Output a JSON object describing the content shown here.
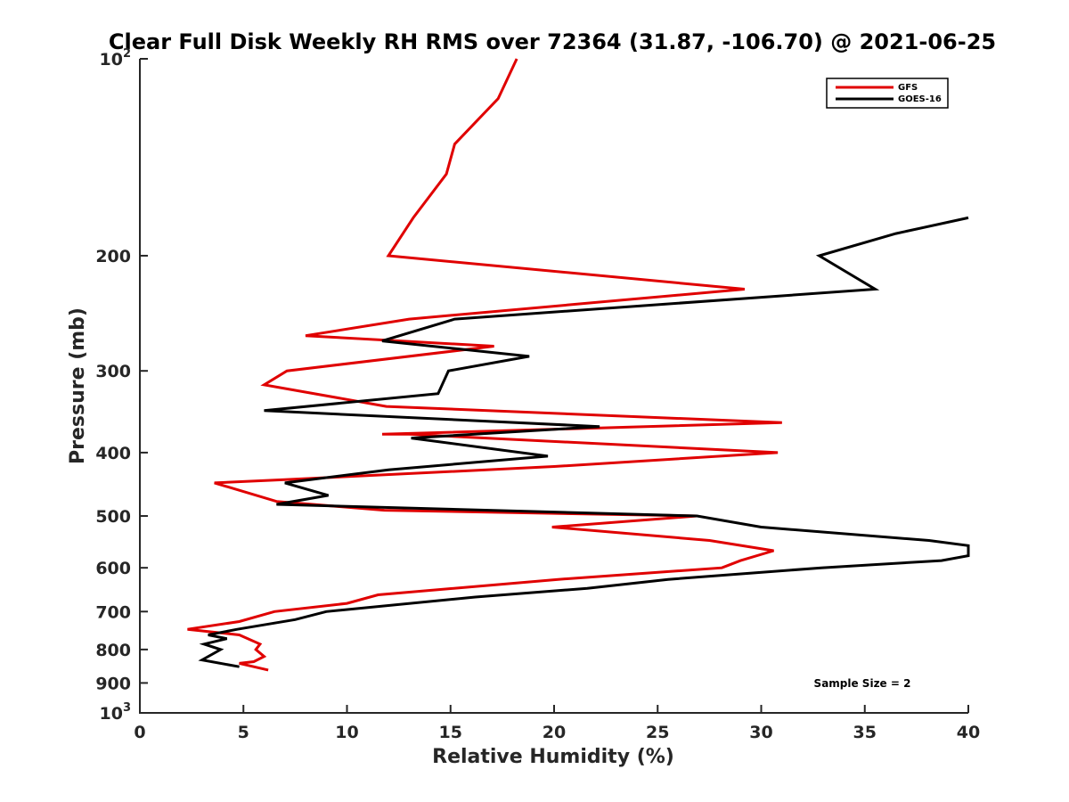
{
  "chart_data": {
    "type": "line",
    "title": "Clear Full Disk Weekly RH RMS over 72364 (31.87, -106.70) @ 2021-06-25",
    "xlabel": "Relative Humidity (%)",
    "ylabel": "Pressure (mb)",
    "xlim": [
      0,
      40
    ],
    "ylim": [
      100,
      1000
    ],
    "y_scale": "log",
    "y_reversed": true,
    "grid": false,
    "legend_location": "top-right",
    "x_ticks": [
      0,
      5,
      10,
      15,
      20,
      25,
      30,
      35,
      40
    ],
    "x_tick_labels": [
      "0",
      "5",
      "10",
      "15",
      "20",
      "25",
      "30",
      "35",
      "40"
    ],
    "y_ticks": [
      100,
      200,
      300,
      400,
      500,
      600,
      700,
      800,
      900,
      1000
    ],
    "y_tick_labels": [
      {
        "base": "10",
        "sup": "2"
      },
      {
        "base": "200",
        "sup": ""
      },
      {
        "base": "300",
        "sup": ""
      },
      {
        "base": "400",
        "sup": ""
      },
      {
        "base": "500",
        "sup": ""
      },
      {
        "base": "600",
        "sup": ""
      },
      {
        "base": "700",
        "sup": ""
      },
      {
        "base": "800",
        "sup": ""
      },
      {
        "base": "900",
        "sup": ""
      },
      {
        "base": "10",
        "sup": "3"
      }
    ],
    "annotation": "Sample Size = 2",
    "series": [
      {
        "name": "GFS",
        "color": "#e00000",
        "points": [
          [
            18.2,
            100
          ],
          [
            17.3,
            115
          ],
          [
            15.2,
            135
          ],
          [
            14.8,
            150
          ],
          [
            13.2,
            175
          ],
          [
            12.0,
            200
          ],
          [
            29.2,
            225
          ],
          [
            13.0,
            250
          ],
          [
            8.0,
            265
          ],
          [
            17.1,
            275
          ],
          [
            7.1,
            300
          ],
          [
            6.0,
            315
          ],
          [
            11.9,
            340
          ],
          [
            31.0,
            360
          ],
          [
            11.7,
            375
          ],
          [
            13.0,
            375
          ],
          [
            30.8,
            400
          ],
          [
            20.0,
            420
          ],
          [
            7.0,
            440
          ],
          [
            3.6,
            445
          ],
          [
            6.6,
            475
          ],
          [
            11.8,
            490
          ],
          [
            26.9,
            500
          ],
          [
            19.9,
            520
          ],
          [
            27.5,
            545
          ],
          [
            30.6,
            565
          ],
          [
            29.0,
            585
          ],
          [
            28.1,
            600
          ],
          [
            20.2,
            625
          ],
          [
            11.5,
            660
          ],
          [
            10.0,
            680
          ],
          [
            6.5,
            700
          ],
          [
            4.8,
            725
          ],
          [
            2.3,
            745
          ],
          [
            4.8,
            760
          ],
          [
            5.8,
            785
          ],
          [
            5.6,
            800
          ],
          [
            6.0,
            820
          ],
          [
            5.5,
            835
          ],
          [
            4.8,
            840
          ],
          [
            6.2,
            860
          ]
        ]
      },
      {
        "name": "GOES-16",
        "color": "#000000",
        "points": [
          [
            40.0,
            175
          ],
          [
            36.5,
            185
          ],
          [
            32.8,
            200
          ],
          [
            35.5,
            225
          ],
          [
            15.2,
            250
          ],
          [
            11.7,
            270
          ],
          [
            18.8,
            285
          ],
          [
            14.9,
            300
          ],
          [
            14.4,
            325
          ],
          [
            6.0,
            345
          ],
          [
            22.2,
            365
          ],
          [
            13.1,
            380
          ],
          [
            19.7,
            405
          ],
          [
            12.0,
            425
          ],
          [
            7.0,
            445
          ],
          [
            9.1,
            465
          ],
          [
            6.6,
            480
          ],
          [
            26.9,
            500
          ],
          [
            30.0,
            520
          ],
          [
            38.1,
            545
          ],
          [
            40.0,
            555
          ],
          [
            40.0,
            575
          ],
          [
            38.7,
            585
          ],
          [
            32.9,
            600
          ],
          [
            25.5,
            625
          ],
          [
            21.6,
            645
          ],
          [
            16.2,
            665
          ],
          [
            9.0,
            700
          ],
          [
            7.5,
            720
          ],
          [
            4.7,
            745
          ],
          [
            3.3,
            760
          ],
          [
            4.2,
            770
          ],
          [
            3.1,
            785
          ],
          [
            3.9,
            800
          ],
          [
            3.0,
            830
          ],
          [
            4.8,
            850
          ]
        ]
      }
    ]
  }
}
